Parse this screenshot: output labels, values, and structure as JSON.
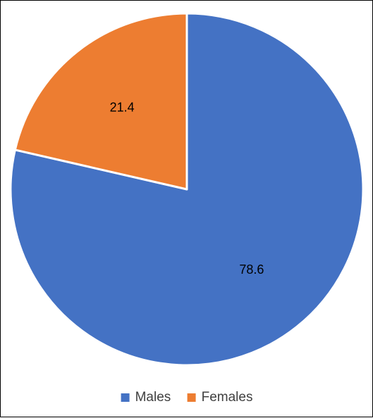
{
  "chart_data": {
    "type": "pie",
    "title": "",
    "categories": [
      "Males",
      "Females"
    ],
    "values": [
      78.6,
      21.4
    ],
    "colors": [
      "#4472C4",
      "#ED7D31"
    ],
    "data_labels": [
      "78.6",
      "21.4"
    ],
    "legend": {
      "position": "bottom",
      "entries": [
        "Males",
        "Females"
      ]
    }
  }
}
